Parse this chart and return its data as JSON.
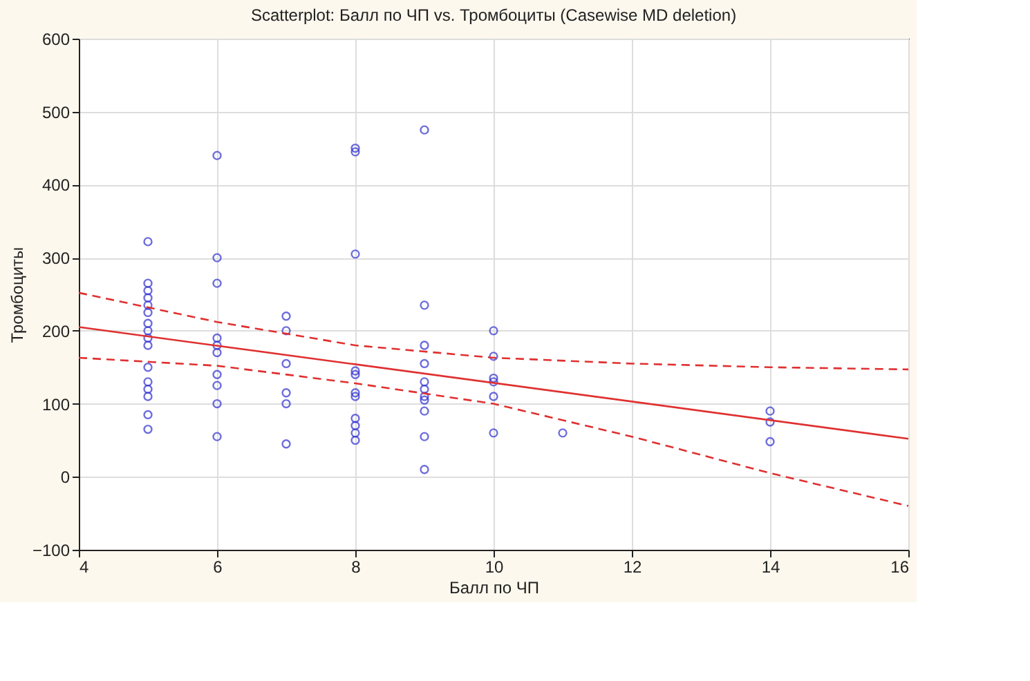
{
  "chart_data": {
    "type": "scatter",
    "title": "Scatterplot: Балл по ЧП vs. Тромбоциты (Casewise MD deletion)",
    "xlabel": "Балл по ЧП",
    "ylabel": "Тромбоциты",
    "xlim": [
      4,
      16
    ],
    "xticks": [
      4,
      6,
      8,
      10,
      12,
      14,
      16
    ],
    "ylim": [
      -100,
      600
    ],
    "yticks": [
      -100,
      0,
      100,
      200,
      300,
      400,
      500,
      600
    ],
    "grid": true,
    "series": [
      {
        "color": "#3030d0",
        "marker": "circle",
        "x": [
          5,
          5,
          5,
          5,
          5,
          5,
          5,
          5,
          5,
          5,
          5,
          5,
          5,
          5,
          5,
          5,
          6,
          6,
          6,
          6,
          6,
          6,
          6,
          6,
          6,
          6,
          7,
          7,
          7,
          7,
          7,
          7,
          8,
          8,
          8,
          8,
          8,
          8,
          8,
          8,
          8,
          8,
          8,
          9,
          9,
          9,
          9,
          9,
          9,
          9,
          9,
          9,
          9,
          9,
          10,
          10,
          10,
          10,
          10,
          10,
          11,
          14,
          14,
          14
        ],
        "values": [
          322,
          265,
          255,
          245,
          235,
          225,
          210,
          200,
          190,
          180,
          150,
          130,
          120,
          110,
          85,
          65,
          440,
          300,
          265,
          190,
          180,
          170,
          140,
          125,
          100,
          55,
          220,
          200,
          155,
          115,
          100,
          45,
          450,
          445,
          305,
          145,
          140,
          115,
          110,
          80,
          70,
          60,
          50,
          475,
          235,
          180,
          155,
          130,
          120,
          110,
          105,
          90,
          55,
          10,
          200,
          165,
          135,
          130,
          110,
          60,
          60,
          90,
          75,
          48
        ]
      },
      {
        "type": "line",
        "color": "#e03030",
        "line_style": "solid",
        "marker": "none",
        "x": [
          4,
          16
        ],
        "values": [
          205,
          52
        ]
      },
      {
        "type": "line",
        "color": "#e03030",
        "line_style": "dashed",
        "marker": "none",
        "x": [
          4,
          6,
          8,
          10,
          12,
          14,
          16
        ],
        "values": [
          252,
          212,
          180,
          163,
          155,
          150,
          147
        ]
      },
      {
        "type": "line",
        "color": "#e03030",
        "line_style": "dashed",
        "marker": "none",
        "x": [
          4,
          6,
          8,
          10,
          12,
          14,
          16
        ],
        "values": [
          163,
          152,
          128,
          100,
          55,
          5,
          -40
        ]
      }
    ]
  }
}
